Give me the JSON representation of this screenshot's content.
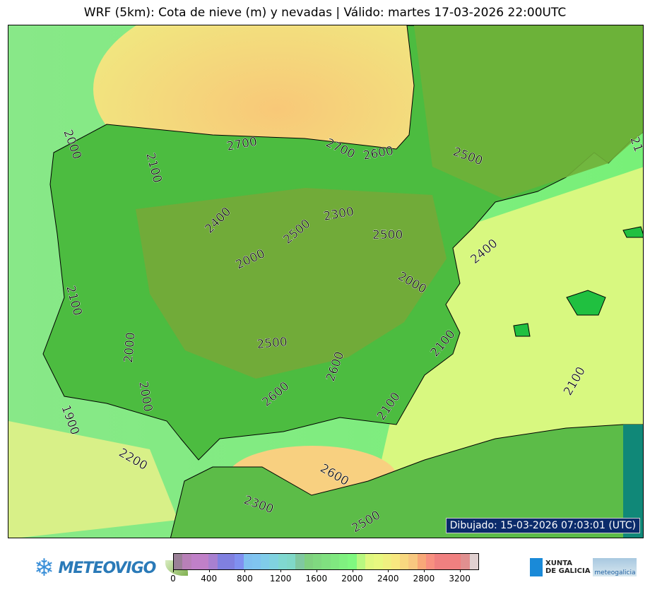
{
  "title": "WRF (5km): Cota de nieve (m) y nevadas | Válido: martes 17-03-2026 22:00UTC",
  "stamp": "Dibujado: 15-03-2026 07:03:01 (UTC)",
  "contour_labels": [
    "2000",
    "2100",
    "2700",
    "2700",
    "2600",
    "2500",
    "2400",
    "2300",
    "2500",
    "2500",
    "2400",
    "2000",
    "2000",
    "2100",
    "2000",
    "2500",
    "2600",
    "2100",
    "2000",
    "2600",
    "2100",
    "2100",
    "1900",
    "2200",
    "2600",
    "2300",
    "2500",
    "21"
  ],
  "colorbar": {
    "min": 0,
    "max": 3400,
    "step": 100,
    "ticks": [
      "0",
      "400",
      "800",
      "1200",
      "1600",
      "2000",
      "2400",
      "2800",
      "3200"
    ],
    "colors": [
      "#9a8097",
      "#b880b8",
      "#c080c8",
      "#c080c8",
      "#a880d0",
      "#8080e0",
      "#8080e0",
      "#8090f0",
      "#80c0f0",
      "#80c4f0",
      "#80ccea",
      "#80d2e0",
      "#80d8d0",
      "#80d8c8",
      "#80c8a0",
      "#80d080",
      "#80d880",
      "#80e080",
      "#80e880",
      "#80f080",
      "#80f880",
      "#b8f880",
      "#e0f880",
      "#e8f880",
      "#f0f080",
      "#f8e880",
      "#f8d880",
      "#f8c880",
      "#f8a878",
      "#f89080",
      "#f08080",
      "#f08080",
      "#f08080",
      "#e09090",
      "#e0d0d0"
    ]
  },
  "logos": {
    "meteovigo": "METEOVIGO",
    "xunta": "XUNTA\nDE GALICIA",
    "meteogalicia": "meteogalicia"
  }
}
